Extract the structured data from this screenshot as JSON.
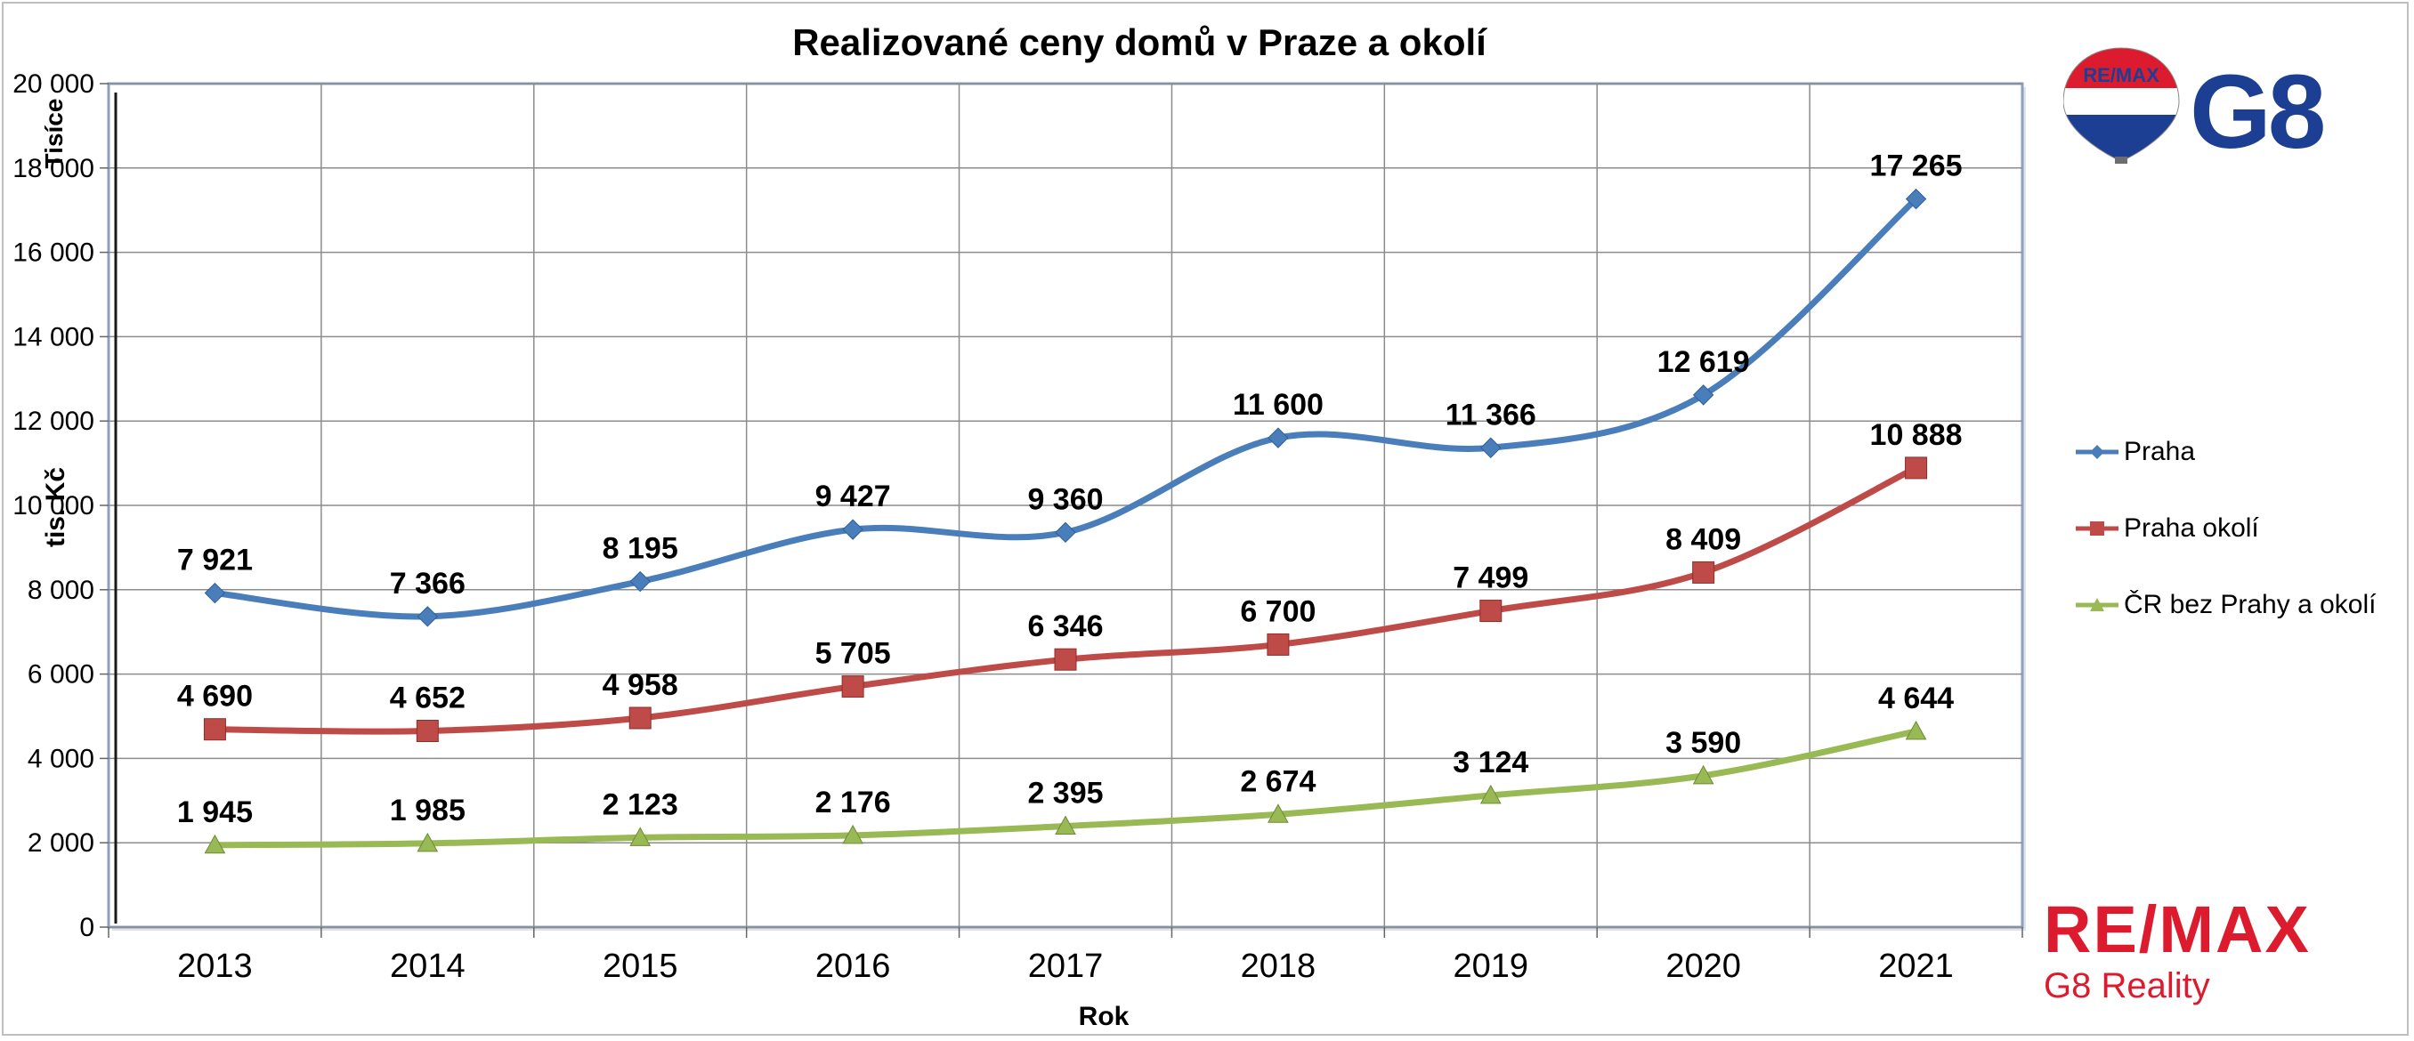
{
  "chart_data": {
    "type": "line",
    "title": "Realizované ceny domů v Praze a okolí",
    "xlabel": "Rok",
    "ylabel": "tis. Kč",
    "y_unit_label": "Tisíce",
    "categories": [
      "2013",
      "2014",
      "2015",
      "2016",
      "2017",
      "2018",
      "2019",
      "2020",
      "2021"
    ],
    "ylim": [
      0,
      20000
    ],
    "yticks": [
      0,
      2000,
      4000,
      6000,
      8000,
      10000,
      12000,
      14000,
      16000,
      18000,
      20000
    ],
    "ytick_labels": [
      "0",
      "2 000",
      "4 000",
      "6 000",
      "8 000",
      "10 000",
      "12 000",
      "14 000",
      "16 000",
      "18 000",
      "20 000"
    ],
    "grid": true,
    "smooth": true,
    "legend_position": "right",
    "series": [
      {
        "name": "Praha",
        "color": "#4a7ebb",
        "marker": "diamond",
        "values": [
          7921,
          7366,
          8195,
          9427,
          9360,
          11600,
          11366,
          12619,
          17265
        ],
        "labels": [
          "7 921",
          "7 366",
          "8 195",
          "9 427",
          "9 360",
          "11 600",
          "11 366",
          "12 619",
          "17 265"
        ]
      },
      {
        "name": "Praha okolí",
        "color": "#be4b48",
        "marker": "square",
        "values": [
          4690,
          4652,
          4958,
          5705,
          6346,
          6700,
          7499,
          8409,
          10888
        ],
        "labels": [
          "4 690",
          "4 652",
          "4 958",
          "5 705",
          "6 346",
          "6 700",
          "7 499",
          "8 409",
          "10 888"
        ]
      },
      {
        "name": "ČR bez Prahy a okolí",
        "color": "#98b954",
        "marker": "triangle",
        "values": [
          1945,
          1985,
          2123,
          2176,
          2395,
          2674,
          3124,
          3590,
          4644
        ],
        "labels": [
          "1 945",
          "1 985",
          "2 123",
          "2 176",
          "2 395",
          "2 674",
          "3 124",
          "3 590",
          "4 644"
        ]
      }
    ]
  },
  "logos": {
    "balloon_text": "RE/MAX",
    "g8_text": "G8",
    "remax_text": "RE/MAX",
    "remax_sub": "G8 Reality",
    "brand_red": "#dc1c2e",
    "brand_blue": "#1c3f94"
  }
}
